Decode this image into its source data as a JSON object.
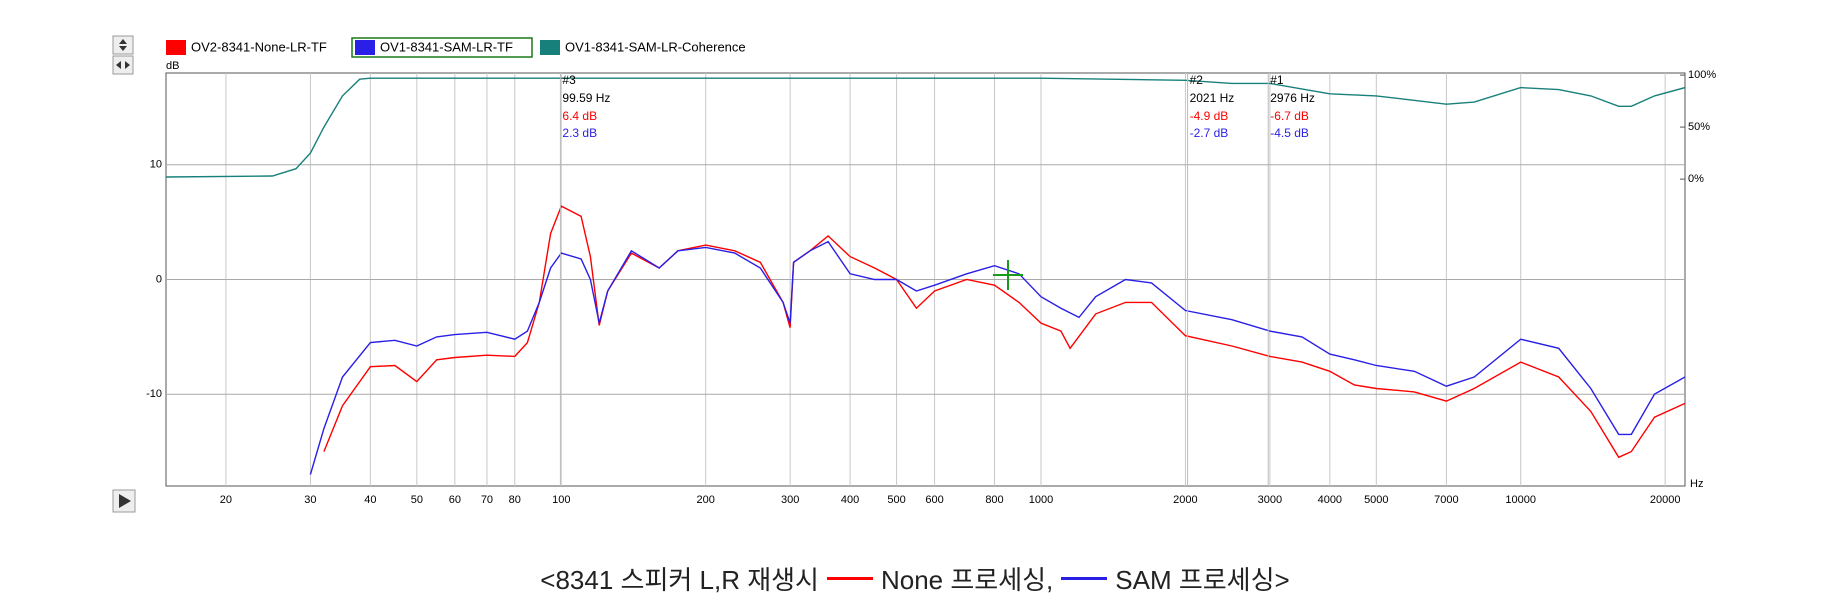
{
  "chart_data": {
    "type": "line",
    "x_scale": "log",
    "y_axis_label": "dB",
    "x_axis_label": "Hz",
    "xlim": [
      15,
      22000
    ],
    "xticks": [
      20,
      30,
      40,
      50,
      60,
      70,
      80,
      100,
      200,
      300,
      400,
      500,
      600,
      800,
      1000,
      2000,
      3000,
      4000,
      5000,
      7000,
      10000,
      20000
    ],
    "ylim": [
      -18,
      18
    ],
    "yticks": [
      -10,
      0,
      10
    ],
    "y2lim": [
      -295,
      102
    ],
    "y2ticks": [
      {
        "value": 0,
        "label": "0%"
      },
      {
        "value": 50,
        "label": "50%"
      },
      {
        "value": 100,
        "label": "100%"
      }
    ],
    "grid": true,
    "legend": "top-left",
    "series": [
      {
        "name": "OV2-8341-None-LR-TF",
        "color": "#ff0000",
        "x": [
          32,
          35,
          40,
          45,
          50,
          55,
          60,
          70,
          80,
          85,
          90,
          95,
          100,
          110,
          115,
          120,
          125,
          140,
          160,
          175,
          200,
          230,
          260,
          290,
          300,
          305,
          330,
          360,
          400,
          450,
          500,
          550,
          600,
          700,
          800,
          900,
          1000,
          1100,
          1150,
          1300,
          1500,
          1700,
          2000,
          2500,
          3000,
          3500,
          4000,
          4500,
          5000,
          6000,
          7000,
          8000,
          10000,
          12000,
          14000,
          16000,
          17000,
          19000,
          22000
        ],
        "values": [
          -15,
          -11,
          -7.6,
          -7.5,
          -8.9,
          -7,
          -6.8,
          -6.6,
          -6.7,
          -5.5,
          -2,
          4,
          6.4,
          5.5,
          2,
          -4,
          -1,
          2.3,
          1,
          2.5,
          3,
          2.5,
          1.5,
          -2,
          -4.2,
          1.5,
          2.5,
          3.8,
          2,
          1,
          0,
          -2.5,
          -1,
          0,
          -0.5,
          -2,
          -3.8,
          -4.5,
          -6,
          -3,
          -2,
          -2,
          -4.9,
          -5.8,
          -6.7,
          -7.2,
          -8,
          -9.2,
          -9.5,
          -9.8,
          -10.6,
          -9.5,
          -7.2,
          -8.5,
          -11.5,
          -15.5,
          -15,
          -12,
          -10.8
        ]
      },
      {
        "name": "OV1-8341-SAM-LR-TF",
        "color": "#2a1fe6",
        "x": [
          30,
          32,
          35,
          40,
          45,
          50,
          55,
          60,
          70,
          80,
          85,
          90,
          95,
          100,
          110,
          115,
          120,
          125,
          140,
          160,
          175,
          200,
          230,
          260,
          290,
          300,
          305,
          330,
          360,
          400,
          450,
          500,
          550,
          600,
          700,
          800,
          900,
          1000,
          1100,
          1200,
          1300,
          1500,
          1700,
          2000,
          2500,
          3000,
          3500,
          4000,
          4500,
          5000,
          6000,
          7000,
          8000,
          10000,
          12000,
          14000,
          16000,
          17000,
          19000,
          22000
        ],
        "values": [
          -17,
          -13,
          -8.5,
          -5.5,
          -5.3,
          -5.8,
          -5,
          -4.8,
          -4.6,
          -5.2,
          -4.5,
          -2,
          1,
          2.3,
          1.8,
          0,
          -3.8,
          -1,
          2.5,
          1,
          2.5,
          2.8,
          2.3,
          1,
          -2,
          -3.8,
          1.5,
          2.5,
          3.3,
          0.5,
          0,
          0,
          -1,
          -0.5,
          0.5,
          1.2,
          0.5,
          -1.5,
          -2.5,
          -3.3,
          -1.5,
          0,
          -0.3,
          -2.7,
          -3.5,
          -4.5,
          -5,
          -6.5,
          -7,
          -7.5,
          -8,
          -9.3,
          -8.5,
          -5.2,
          -6,
          -9.5,
          -13.5,
          -13.5,
          -10,
          -8.5
        ]
      },
      {
        "name": "OV1-8341-SAM-LR-Coherence",
        "color": "#17807a",
        "axis": "y2",
        "x": [
          15,
          25,
          28,
          30,
          32,
          35,
          38,
          40,
          100,
          1000,
          2000,
          2500,
          3000,
          4000,
          5000,
          7000,
          8000,
          10000,
          12000,
          14000,
          16000,
          17000,
          19000,
          22000
        ],
        "values": [
          2,
          3,
          10,
          25,
          50,
          80,
          96,
          97,
          97,
          97,
          95,
          92,
          92,
          82,
          80,
          72,
          74,
          88,
          86,
          80,
          70,
          70,
          80,
          88
        ]
      }
    ],
    "annotations": [
      {
        "name": "#3",
        "x": 99.59,
        "x_label": "99.59 Hz",
        "series_labels": [
          "6.4 dB",
          "2.3 dB"
        ]
      },
      {
        "name": "#2",
        "x": 2021,
        "x_label": "2021 Hz",
        "series_labels": [
          "-4.9 dB",
          "-2.7 dB"
        ]
      },
      {
        "name": "#1",
        "x": 2976,
        "x_label": "2976 Hz",
        "series_labels": [
          "-6.7 dB",
          "-4.5 dB"
        ]
      }
    ],
    "caption": {
      "prefix": "<8341 스피커 L,R 재생시",
      "items": [
        "None 프로세싱,",
        "SAM 프로세싱>"
      ]
    }
  }
}
